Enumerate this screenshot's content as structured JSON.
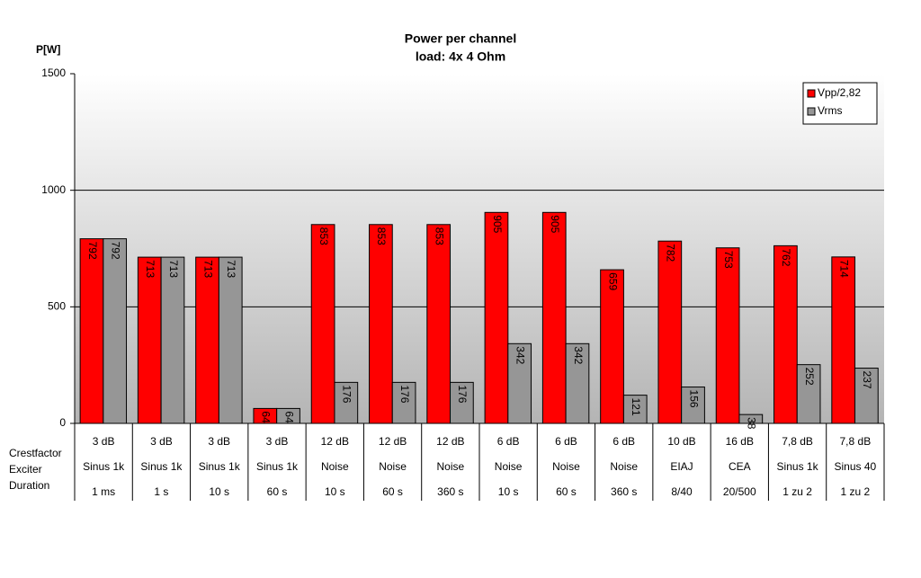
{
  "chart_data": {
    "type": "bar",
    "title": "Power per channel",
    "subtitle": "load:  4x 4 Ohm",
    "y_label": "P[W]",
    "category_levels": [
      {
        "name": "Crestfactor",
        "labels": [
          "3 dB",
          "3 dB",
          "3 dB",
          "3 dB",
          "12 dB",
          "12 dB",
          "12 dB",
          "6 dB",
          "6 dB",
          "6 dB",
          "10 dB",
          "16 dB",
          "7,8 dB",
          "7,8 dB"
        ]
      },
      {
        "name": "Exciter",
        "labels": [
          "Sinus 1k",
          "Sinus 1k",
          "Sinus 1k",
          "Sinus 1k",
          "Noise",
          "Noise",
          "Noise",
          "Noise",
          "Noise",
          "Noise",
          "EIAJ",
          "CEA",
          "Sinus 1k",
          "Sinus 40"
        ]
      },
      {
        "name": "Duration",
        "labels": [
          "1 ms",
          "1 s",
          "10 s",
          "60 s",
          "10 s",
          "60 s",
          "360 s",
          "10 s",
          "60 s",
          "360 s",
          "8/40",
          "20/500",
          "1 zu 2",
          "1 zu 2"
        ]
      }
    ],
    "series": [
      {
        "name": "Vpp/2,82",
        "color": "#ff0000",
        "values": [
          792,
          713,
          713,
          64,
          853,
          853,
          853,
          905,
          905,
          659,
          782,
          753,
          762,
          714
        ]
      },
      {
        "name": "Vrms",
        "color": "#969696",
        "values": [
          792,
          713,
          713,
          64,
          176,
          176,
          176,
          342,
          342,
          121,
          156,
          38,
          252,
          237
        ]
      }
    ],
    "ylim": [
      0,
      1500
    ],
    "yticks": [
      0,
      500,
      1000,
      1500
    ],
    "grid": true,
    "legend": "top-right"
  }
}
